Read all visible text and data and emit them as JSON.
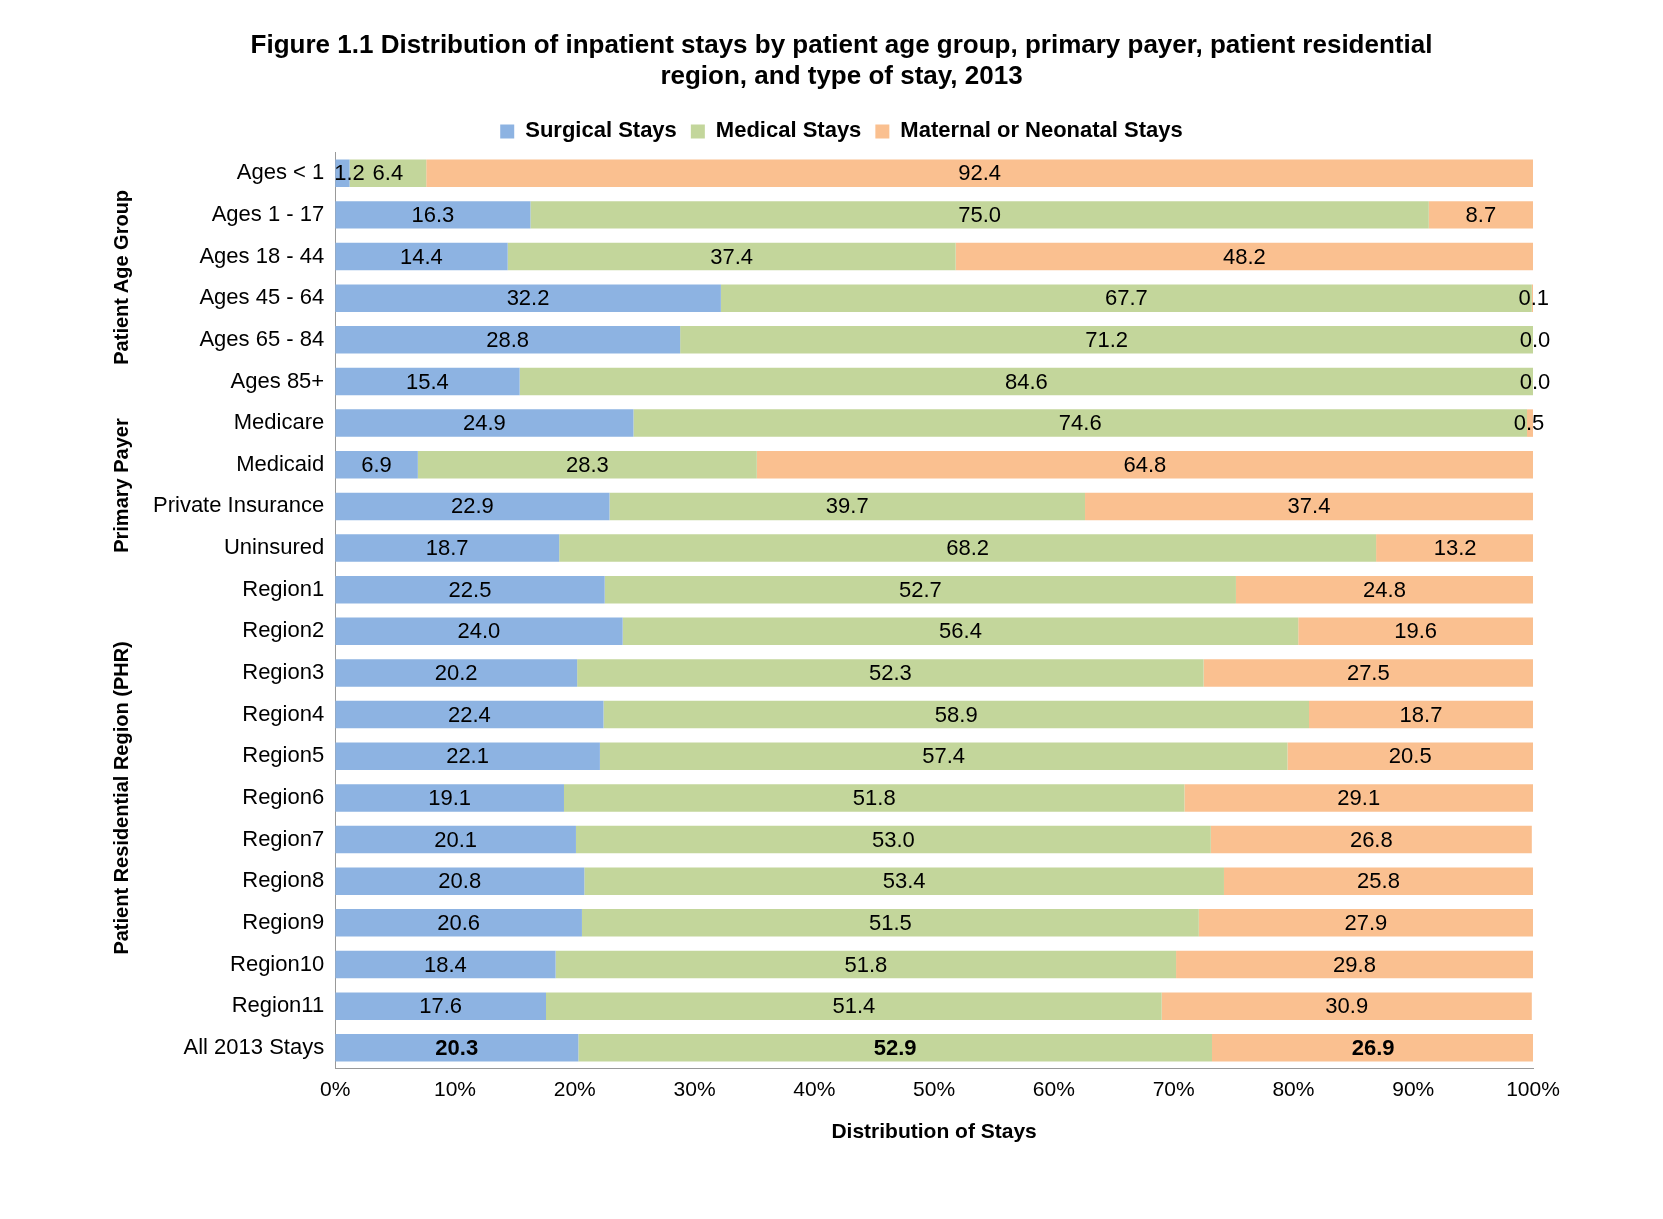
{
  "chart_data": {
    "type": "bar",
    "orientation": "horizontal",
    "stacked": true,
    "title": "Figure 1.1 Distribution of inpatient stays by patient age group, primary payer, patient residential region, and type of stay, 2013",
    "xlabel": "Distribution of Stays",
    "annotations": [
      "Patient Age Group",
      "Primary Payer",
      "Patient Residential Region (PHR)"
    ],
    "categories": [
      "Ages < 1",
      "Ages 1 - 17",
      "Ages 18 - 44",
      "Ages 45 - 64",
      "Ages 65 - 84",
      "Ages 85+",
      "Medicare",
      "Medicaid",
      "Private Insurance",
      "Uninsured",
      "Region1",
      "Region2",
      "Region3",
      "Region4",
      "Region5",
      "Region6",
      "Region7",
      "Region8",
      "Region9",
      "Region10",
      "Region11",
      "All 2013 Stays"
    ],
    "series": [
      {
        "name": "Surgical Stays",
        "color": "#8db3e2",
        "values": [
          1.2,
          16.3,
          14.4,
          32.2,
          28.8,
          15.4,
          24.9,
          6.9,
          22.9,
          18.7,
          22.5,
          24.0,
          20.2,
          22.4,
          22.1,
          19.1,
          20.1,
          20.8,
          20.6,
          18.4,
          17.6,
          20.3
        ],
        "value_labels": [
          "1.2",
          "16.3",
          "14.4",
          "32.2",
          "28.8",
          "15.4",
          "24.9",
          "6.9",
          "22.9",
          "18.7",
          "22.5",
          "24.0",
          "20.2",
          "22.4",
          "22.1",
          "19.1",
          "20.1",
          "20.8",
          "20.6",
          "18.4",
          "17.6",
          "20.3"
        ]
      },
      {
        "name": "Medical Stays",
        "color": "#c3d69b",
        "values": [
          6.4,
          75.0,
          37.4,
          67.7,
          71.2,
          84.6,
          74.6,
          28.3,
          39.7,
          68.2,
          52.7,
          56.4,
          52.3,
          58.9,
          57.4,
          51.8,
          53.0,
          53.4,
          51.5,
          51.8,
          51.4,
          52.9
        ],
        "value_labels": [
          "6.4",
          "75.0",
          "37.4",
          "67.7",
          "71.2",
          "84.6",
          "74.6",
          "28.3",
          "39.7",
          "68.2",
          "52.7",
          "56.4",
          "52.3",
          "58.9",
          "57.4",
          "51.8",
          "53.0",
          "53.4",
          "51.5",
          "51.8",
          "51.4",
          "52.9"
        ]
      },
      {
        "name": "Maternal or Neonatal Stays",
        "color": "#fac090",
        "values": [
          92.4,
          8.7,
          48.2,
          0.1,
          0.0,
          0.0,
          0.5,
          64.8,
          37.4,
          13.2,
          24.8,
          19.6,
          27.5,
          18.7,
          20.5,
          29.1,
          26.8,
          25.8,
          27.9,
          29.8,
          30.9,
          26.9
        ],
        "value_labels": [
          "92.4",
          "8.7",
          "48.2",
          "0.1",
          "0.0",
          "0.0",
          "0.5",
          "64.8",
          "37.4",
          "13.2",
          "24.8",
          "19.6",
          "27.5",
          "18.7",
          "20.5",
          "29.1",
          "26.8",
          "25.8",
          "27.9",
          "29.8",
          "30.9",
          "26.9"
        ]
      }
    ],
    "xlim": [
      0,
      100
    ],
    "xticks": [
      {
        "value": 0,
        "label": "0%"
      },
      {
        "value": 10,
        "label": "10%"
      },
      {
        "value": 20,
        "label": "20%"
      },
      {
        "value": 30,
        "label": "30%"
      },
      {
        "value": 40,
        "label": "40%"
      },
      {
        "value": 50,
        "label": "50%"
      },
      {
        "value": 60,
        "label": "60%"
      },
      {
        "value": 70,
        "label": "70%"
      },
      {
        "value": 80,
        "label": "80%"
      },
      {
        "value": 90,
        "label": "90%"
      },
      {
        "value": 100,
        "label": "100%"
      }
    ],
    "grid": false,
    "legend": "top"
  }
}
